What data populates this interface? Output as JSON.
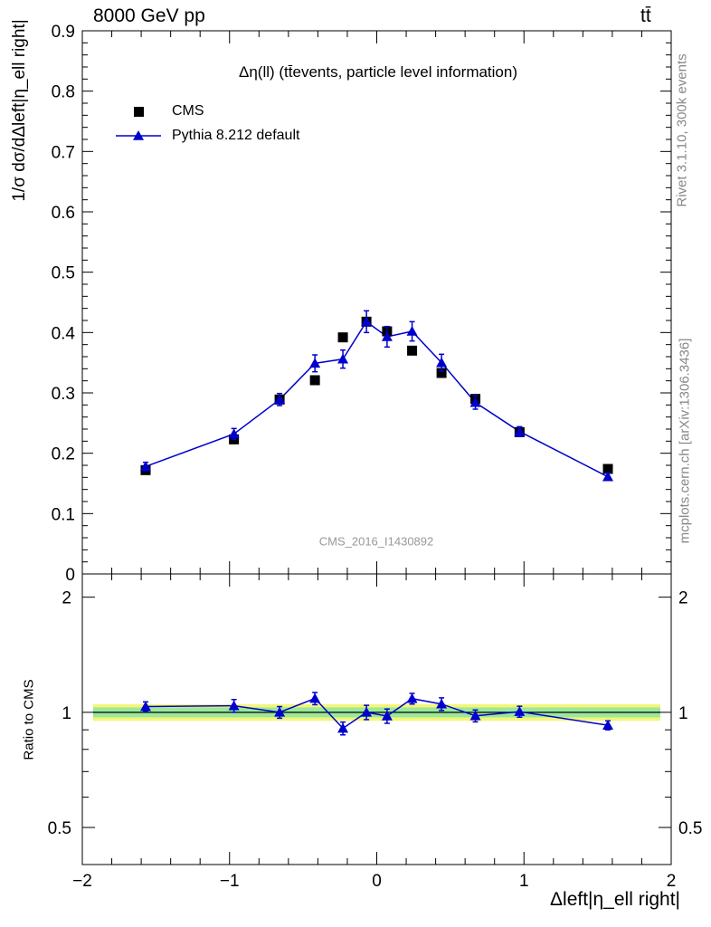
{
  "header": {
    "energy_label": "8000 GeV pp",
    "process_label": "tt̄",
    "side_label_top": "Rivet 3.1.10,  300k events",
    "side_label_bottom": "mcplots.cern.ch [arXiv:1306.3436]"
  },
  "chart_data": [
    {
      "type": "scatter",
      "title": "Δη(ll) (tt̄events, particle level information)",
      "watermark": "CMS_2016_I1430892",
      "ylabel": "1/σ dσ/dΔleft|η_ell right|",
      "xlim": [
        -2,
        2
      ],
      "ylim": [
        0,
        0.9
      ],
      "y_ticks": [
        0,
        0.1,
        0.2,
        0.3,
        0.4,
        0.5,
        0.6,
        0.7,
        0.8,
        0.9
      ],
      "y_tick_labels": [
        "0",
        "0.1",
        "0.2",
        "0.3",
        "0.4",
        "0.5",
        "0.6",
        "0.7",
        "0.8",
        "0.9"
      ],
      "legend_position": "top-left",
      "series": [
        {
          "name": "CMS",
          "marker": "square",
          "color": "#000000",
          "x": [
            -1.57,
            -0.97,
            -0.66,
            -0.42,
            -0.23,
            -0.07,
            0.07,
            0.24,
            0.44,
            0.67,
            0.97,
            1.57
          ],
          "y": [
            0.172,
            0.223,
            0.289,
            0.321,
            0.392,
            0.418,
            0.402,
            0.37,
            0.333,
            0.29,
            0.235,
            0.174
          ]
        },
        {
          "name": "Pythia 8.212 default",
          "marker": "triangle",
          "color": "#0000cc",
          "x": [
            -1.57,
            -0.97,
            -0.66,
            -0.42,
            -0.23,
            -0.07,
            0.07,
            0.24,
            0.44,
            0.67,
            0.97,
            1.57
          ],
          "y": [
            0.178,
            0.232,
            0.289,
            0.349,
            0.356,
            0.418,
            0.393,
            0.402,
            0.35,
            0.284,
            0.236,
            0.161
          ],
          "err": [
            0.007,
            0.009,
            0.01,
            0.014,
            0.015,
            0.018,
            0.017,
            0.016,
            0.014,
            0.011,
            0.008,
            0.006
          ]
        }
      ]
    },
    {
      "type": "line",
      "ylabel": "Ratio to CMS",
      "xlabel": "Δleft|η_ell right|",
      "xlim": [
        -2,
        2
      ],
      "ylim": [
        0.4,
        2.3
      ],
      "log_y": true,
      "x_ticks": [
        -2,
        -1,
        0,
        1,
        2
      ],
      "x_tick_labels": [
        "−2",
        "−1",
        "0",
        "1",
        "2"
      ],
      "y_ticks": [
        0.5,
        1,
        2
      ],
      "y_tick_labels": [
        "0.5",
        "1",
        "2"
      ],
      "band_colors": {
        "inner": "#9be89b",
        "outer": "#f5f57a"
      },
      "series": [
        {
          "name": "Pythia 8.212 default",
          "color": "#0000cc",
          "x": [
            -1.57,
            -0.97,
            -0.66,
            -0.42,
            -0.23,
            -0.07,
            0.07,
            0.24,
            0.44,
            0.67,
            0.97,
            1.57
          ],
          "y": [
            1.035,
            1.04,
            1.0,
            1.087,
            0.908,
            1.0,
            0.978,
            1.086,
            1.051,
            0.979,
            1.004,
            0.925
          ],
          "err": [
            0.03,
            0.04,
            0.035,
            0.04,
            0.035,
            0.043,
            0.042,
            0.035,
            0.04,
            0.035,
            0.033,
            0.025
          ]
        }
      ]
    }
  ]
}
